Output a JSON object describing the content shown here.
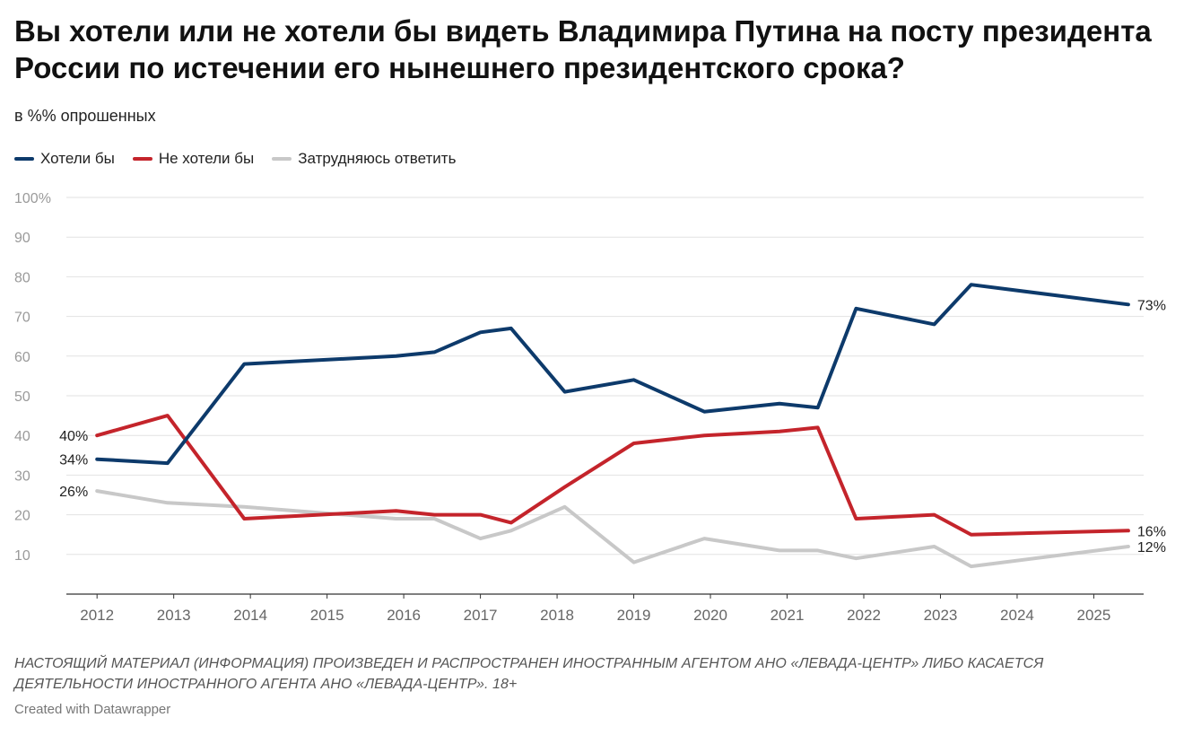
{
  "header": {
    "title": "Вы хотели или не хотели бы видеть Владимира Путина на посту президента России по истечении его нынешнего президентского срока?",
    "subtitle": "в %% опрошенных"
  },
  "footer": {
    "notes": "НАСТОЯЩИЙ МАТЕРИАЛ (ИНФОРМАЦИЯ) ПРОИЗВЕДЕН И РАСПРОСТРАНЕН ИНОСТРАННЫМ АГЕНТОМ АНО «ЛЕВАДА-ЦЕНТР» ЛИБО КАСАЕТСЯ ДЕЯТЕЛЬНОСТИ ИНОСТРАННОГО АГЕНТА АНО «ЛЕВАДА-ЦЕНТР». 18+",
    "credit": "Created with Datawrapper"
  },
  "chart_data": {
    "type": "line",
    "xlim": [
      2011.6,
      2025.65
    ],
    "ylim": [
      0,
      100
    ],
    "grid": true,
    "legend_position": "top-left",
    "x_ticks": [
      2012,
      2013,
      2014,
      2015,
      2016,
      2017,
      2018,
      2019,
      2020,
      2021,
      2022,
      2023,
      2024,
      2025
    ],
    "y_ticks": [
      {
        "value": 10,
        "label": "10"
      },
      {
        "value": 20,
        "label": "20"
      },
      {
        "value": 30,
        "label": "30"
      },
      {
        "value": 40,
        "label": "40"
      },
      {
        "value": 50,
        "label": "50"
      },
      {
        "value": 60,
        "label": "60"
      },
      {
        "value": 70,
        "label": "70"
      },
      {
        "value": 80,
        "label": "80"
      },
      {
        "value": 90,
        "label": "90"
      },
      {
        "value": 100,
        "label": "100%"
      }
    ],
    "series": [
      {
        "name": "Хотели бы",
        "color": "#0d3a6b",
        "x": [
          2012.0,
          2012.92,
          2013.92,
          2015.9,
          2016.4,
          2017.0,
          2017.4,
          2018.1,
          2019.0,
          2019.92,
          2020.9,
          2021.4,
          2021.9,
          2022.92,
          2023.4,
          2025.45
        ],
        "y": [
          34,
          33,
          58,
          60,
          61,
          66,
          67,
          51,
          54,
          46,
          48,
          47,
          72,
          68,
          78,
          73
        ],
        "start_label": "34%",
        "end_label": "73%"
      },
      {
        "name": "Не хотели бы",
        "color": "#c4242b",
        "x": [
          2012.0,
          2012.92,
          2013.92,
          2015.9,
          2016.4,
          2017.0,
          2017.4,
          2018.1,
          2019.0,
          2019.92,
          2020.9,
          2021.4,
          2021.9,
          2022.92,
          2023.4,
          2025.45
        ],
        "y": [
          40,
          45,
          19,
          21,
          20,
          20,
          18,
          27,
          38,
          40,
          41,
          42,
          19,
          20,
          15,
          16
        ],
        "start_label": "40%",
        "end_label": "16%"
      },
      {
        "name": "Затрудняюсь ответить",
        "color": "#c8c8c8",
        "x": [
          2012.0,
          2012.92,
          2013.92,
          2015.9,
          2016.4,
          2017.0,
          2017.4,
          2018.1,
          2019.0,
          2019.92,
          2020.9,
          2021.4,
          2021.9,
          2022.92,
          2023.4,
          2025.45
        ],
        "y": [
          26,
          23,
          22,
          19,
          19,
          14,
          16,
          22,
          8,
          14,
          11,
          11,
          9,
          12,
          7,
          12
        ],
        "start_label": "26%",
        "end_label": "12%"
      }
    ]
  }
}
